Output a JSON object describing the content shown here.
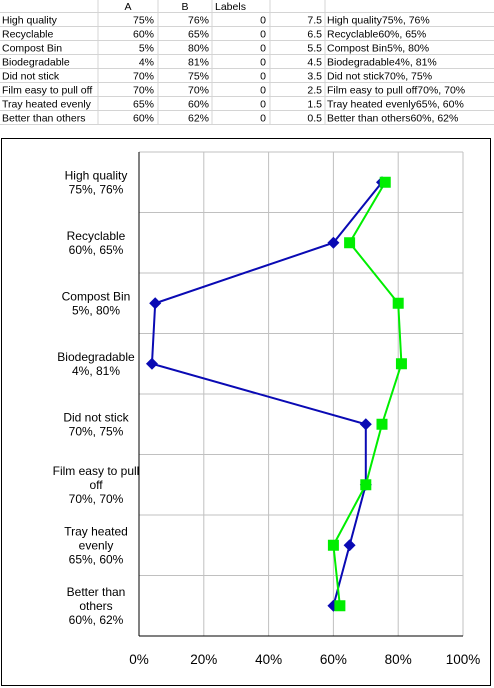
{
  "sheet": {
    "headers": [
      "A",
      "B",
      "Labels"
    ],
    "rows": [
      {
        "name": "High quality",
        "a": "75%",
        "b": "76%",
        "labels": "0",
        "pos": "7.5",
        "combined": "High quality75%, 76%"
      },
      {
        "name": "Recyclable",
        "a": "60%",
        "b": "65%",
        "labels": "0",
        "pos": "6.5",
        "combined": "Recyclable60%, 65%"
      },
      {
        "name": "Compost Bin",
        "a": "5%",
        "b": "80%",
        "labels": "0",
        "pos": "5.5",
        "combined": "Compost Bin5%, 80%"
      },
      {
        "name": "Biodegradable",
        "a": "4%",
        "b": "81%",
        "labels": "0",
        "pos": "4.5",
        "combined": "Biodegradable4%, 81%"
      },
      {
        "name": "Did not stick",
        "a": "70%",
        "b": "75%",
        "labels": "0",
        "pos": "3.5",
        "combined": "Did not stick70%, 75%"
      },
      {
        "name": "Film easy to pull off",
        "a": "70%",
        "b": "70%",
        "labels": "0",
        "pos": "2.5",
        "combined": "Film easy to pull off70%, 70%"
      },
      {
        "name": "Tray heated evenly",
        "a": "65%",
        "b": "60%",
        "labels": "0",
        "pos": "1.5",
        "combined": "Tray heated evenly65%, 60%"
      },
      {
        "name": "Better than others",
        "a": "60%",
        "b": "62%",
        "labels": "0",
        "pos": "0.5",
        "combined": "Better than others60%, 62%"
      }
    ]
  },
  "chart_data": {
    "type": "line",
    "orientation": "horizontal",
    "categories": [
      [
        "High quality",
        "75%, 76%"
      ],
      [
        "Recyclable",
        "60%, 65%"
      ],
      [
        "Compost Bin",
        "5%, 80%"
      ],
      [
        "Biodegradable",
        "4%, 81%"
      ],
      [
        "Did not stick",
        "70%, 75%"
      ],
      [
        "Film easy to pull",
        "off",
        "70%, 70%"
      ],
      [
        "Tray heated",
        "evenly",
        "65%, 60%"
      ],
      [
        "Better than",
        "others",
        "60%, 62%"
      ]
    ],
    "y_positions": [
      7.5,
      6.5,
      5.5,
      4.5,
      3.5,
      2.5,
      1.5,
      0.5
    ],
    "series": [
      {
        "values": [
          75,
          60,
          5,
          4,
          70,
          70,
          65,
          60
        ],
        "color": "#0a0ab4",
        "marker": "diamond"
      },
      {
        "values": [
          76,
          65,
          80,
          81,
          75,
          70,
          60,
          62
        ],
        "color": "#00ee00",
        "marker": "square"
      }
    ],
    "xlim": [
      0,
      100
    ],
    "xticks": [
      0,
      20,
      40,
      60,
      80,
      100
    ],
    "xtick_labels": [
      "0%",
      "20%",
      "40%",
      "60%",
      "80%",
      "100%"
    ],
    "ylim": [
      0,
      8
    ],
    "grid": true,
    "gridline_color": "#c0c0c0"
  }
}
